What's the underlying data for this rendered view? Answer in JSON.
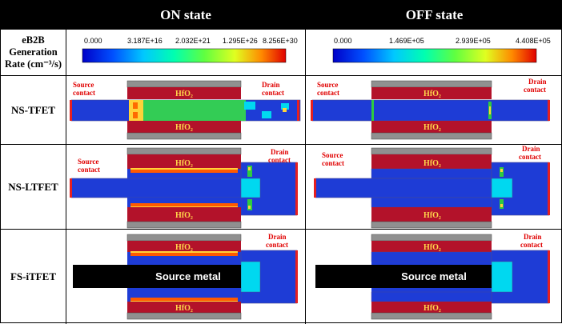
{
  "header": {
    "on_state": "ON state",
    "off_state": "OFF state"
  },
  "legend": {
    "label_line1": "eB2B",
    "label_line2": "Generation",
    "label_line3": "Rate (cm⁻³/s)",
    "on_ticks": [
      "0.000",
      "3.187E+16",
      "2.032E+21",
      "1.295E+26",
      "8.256E+30"
    ],
    "off_ticks": [
      "0.000",
      "1.469E+05",
      "2.939E+05",
      "4.408E+05"
    ]
  },
  "rows": [
    {
      "label": "NS-TFET"
    },
    {
      "label": "NS-LTFET"
    },
    {
      "label": "FS-iTFET"
    }
  ],
  "labels": {
    "source_line1": "Source",
    "source_line2": "contact",
    "drain_line1": "Drain",
    "drain_line2": "contact",
    "hfo2": "HfO₂",
    "source_metal": "Source metal"
  },
  "colors": {
    "oxide": "#b3122a",
    "gate": "#909090",
    "channel": "#1e3cd6",
    "contact": "#e62020",
    "high_gen": "#2ecc40",
    "mid_gen": "#ffd23a",
    "peak_gen": "#ff5a00",
    "cyan": "#00d8f0"
  }
}
